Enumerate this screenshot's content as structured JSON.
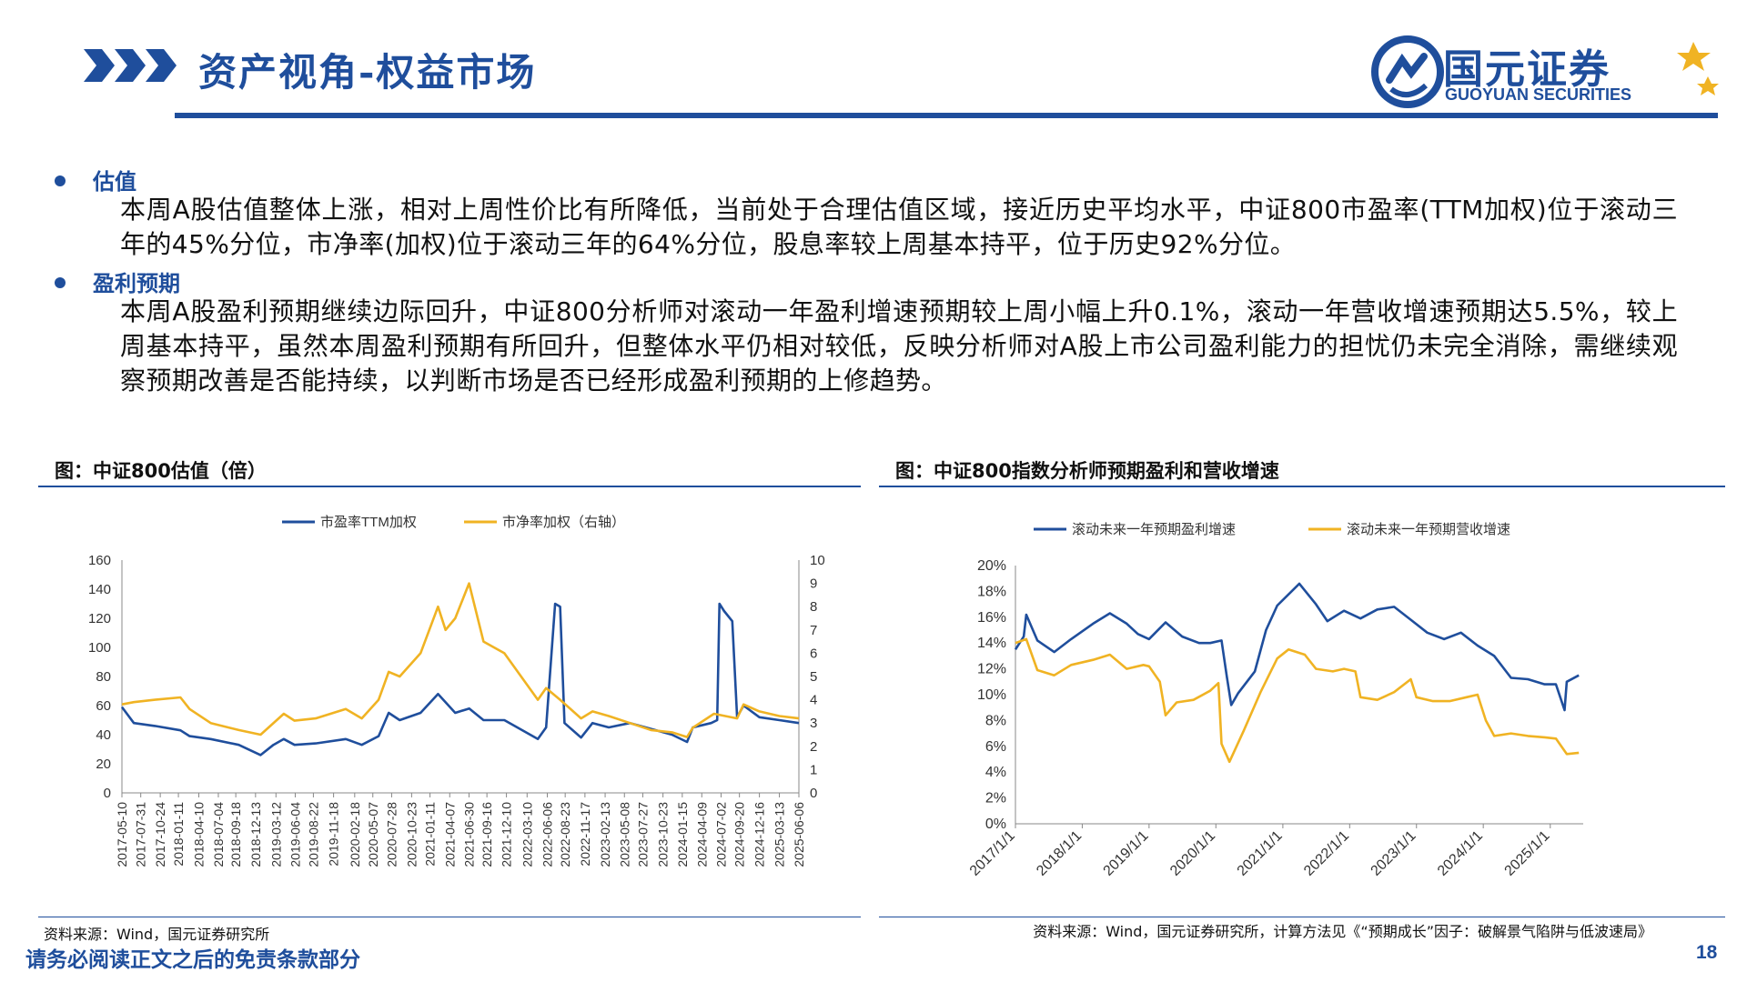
{
  "header": {
    "title": "资产视角-权益市场",
    "logo_cn": "国元证券",
    "logo_en": "GUOYUAN SECURITIES"
  },
  "sections": [
    {
      "heading": "估值",
      "text": "本周A股估值整体上涨，相对上周性价比有所降低，当前处于合理估值区域，接近历史平均水平，中证800市盈率(TTM加权)位于滚动三年的45%分位，市净率(加权)位于滚动三年的64%分位，股息率较上周基本持平，位于历史92%分位。"
    },
    {
      "heading": "盈利预期",
      "text": "本周A股盈利预期继续边际回升，中证800分析师对滚动一年盈利增速预期较上周小幅上升0.1%，滚动一年营收增速预期达5.5%，较上周基本持平，虽然本周盈利预期有所回升，但整体水平仍相对较低，反映分析师对A股上市公司盈利能力的担忧仍未完全消除，需继续观察预期改善是否能持续，以判断市场是否已经形成盈利预期的上修趋势。"
    }
  ],
  "figures": {
    "left_title": "图：中证800估值（倍）",
    "right_title": "图：中证800指数分析师预期盈利和营收增速",
    "left_source": "资料来源：Wind，国元证券研究所",
    "right_source": "资料来源：Wind，国元证券研究所，计算方法见《“预期成长”因子：破解景气陷阱与低波速局》"
  },
  "footer": {
    "disclaimer": "请务必阅读正文之后的免责条款部分",
    "page_number": "18"
  },
  "colors": {
    "brand": "#1f4e9c",
    "series_blue": "#1f4e9c",
    "series_gold": "#f0b323"
  },
  "chart_data": [
    {
      "type": "line",
      "title": "",
      "series": [
        {
          "name": "市盈率TTM加权",
          "axis": "left",
          "points": [
            [
              "2017-05-10",
              59
            ],
            [
              "2017-07-01",
              48
            ],
            [
              "2017-10-01",
              46
            ],
            [
              "2018-01-20",
              43
            ],
            [
              "2018-03-01",
              39
            ],
            [
              "2018-06-01",
              37
            ],
            [
              "2018-10-01",
              33
            ],
            [
              "2019-01-04",
              26
            ],
            [
              "2019-03-01",
              33
            ],
            [
              "2019-04-15",
              37
            ],
            [
              "2019-06-01",
              33
            ],
            [
              "2019-09-01",
              34
            ],
            [
              "2020-01-10",
              37
            ],
            [
              "2020-03-20",
              33
            ],
            [
              "2020-06-01",
              39
            ],
            [
              "2020-07-15",
              55
            ],
            [
              "2020-09-01",
              50
            ],
            [
              "2020-12-01",
              55
            ],
            [
              "2021-02-15",
              68
            ],
            [
              "2021-05-01",
              55
            ],
            [
              "2021-07-01",
              58
            ],
            [
              "2021-09-01",
              50
            ],
            [
              "2021-12-01",
              50
            ],
            [
              "2022-04-26",
              37
            ],
            [
              "2022-06-01",
              45
            ],
            [
              "2022-07-10",
              130
            ],
            [
              "2022-08-01",
              128
            ],
            [
              "2022-08-20",
              48
            ],
            [
              "2022-10-31",
              38
            ],
            [
              "2022-12-20",
              48
            ],
            [
              "2023-03-01",
              45
            ],
            [
              "2023-06-01",
              48
            ],
            [
              "2023-09-01",
              44
            ],
            [
              "2023-12-01",
              40
            ],
            [
              "2024-02-05",
              35
            ],
            [
              "2024-03-01",
              45
            ],
            [
              "2024-05-20",
              48
            ],
            [
              "2024-06-15",
              50
            ],
            [
              "2024-06-25",
              130
            ],
            [
              "2024-07-15",
              125
            ],
            [
              "2024-08-20",
              118
            ],
            [
              "2024-09-10",
              52
            ],
            [
              "2024-10-08",
              60
            ],
            [
              "2024-12-16",
              52
            ],
            [
              "2025-03-13",
              50
            ],
            [
              "2025-06-06",
              48
            ]
          ]
        },
        {
          "name": "市净率加权（右轴）",
          "axis": "right",
          "points": [
            [
              "2017-05-10",
              3.8
            ],
            [
              "2017-07-01",
              3.9
            ],
            [
              "2017-10-01",
              4.0
            ],
            [
              "2018-01-20",
              4.1
            ],
            [
              "2018-03-01",
              3.6
            ],
            [
              "2018-06-01",
              3.0
            ],
            [
              "2018-10-01",
              2.7
            ],
            [
              "2019-01-04",
              2.5
            ],
            [
              "2019-04-15",
              3.4
            ],
            [
              "2019-06-01",
              3.1
            ],
            [
              "2019-09-01",
              3.2
            ],
            [
              "2020-01-10",
              3.6
            ],
            [
              "2020-03-20",
              3.2
            ],
            [
              "2020-06-01",
              4.0
            ],
            [
              "2020-07-15",
              5.2
            ],
            [
              "2020-09-01",
              5.0
            ],
            [
              "2020-12-01",
              6.0
            ],
            [
              "2021-02-15",
              8.0
            ],
            [
              "2021-03-20",
              7.0
            ],
            [
              "2021-05-01",
              7.5
            ],
            [
              "2021-06-30",
              9.0
            ],
            [
              "2021-09-01",
              6.5
            ],
            [
              "2021-12-01",
              6.0
            ],
            [
              "2022-04-26",
              4.0
            ],
            [
              "2022-06-01",
              4.5
            ],
            [
              "2022-08-01",
              4.0
            ],
            [
              "2022-10-31",
              3.2
            ],
            [
              "2022-12-20",
              3.5
            ],
            [
              "2023-03-01",
              3.3
            ],
            [
              "2023-06-01",
              3.0
            ],
            [
              "2023-09-01",
              2.7
            ],
            [
              "2023-12-01",
              2.6
            ],
            [
              "2024-02-05",
              2.4
            ],
            [
              "2024-03-01",
              2.8
            ],
            [
              "2024-06-01",
              3.4
            ],
            [
              "2024-09-10",
              3.2
            ],
            [
              "2024-10-08",
              3.8
            ],
            [
              "2024-12-16",
              3.5
            ],
            [
              "2025-03-13",
              3.3
            ],
            [
              "2025-06-06",
              3.2
            ]
          ]
        }
      ],
      "x_ticks": [
        "2017-05-10",
        "2017-07-31",
        "2017-10-24",
        "2018-01-11",
        "2018-04-10",
        "2018-07-04",
        "2018-09-18",
        "2018-12-13",
        "2019-03-12",
        "2019-06-04",
        "2019-08-22",
        "2019-11-18",
        "2020-02-18",
        "2020-05-07",
        "2020-07-28",
        "2020-10-23",
        "2021-01-11",
        "2021-04-07",
        "2021-06-30",
        "2021-09-16",
        "2021-12-10",
        "2022-03-10",
        "2022-06-06",
        "2022-08-23",
        "2022-11-17",
        "2023-02-13",
        "2023-05-08",
        "2023-07-27",
        "2023-10-23",
        "2024-01-15",
        "2024-04-09",
        "2024-07-02",
        "2024-09-20",
        "2024-12-16",
        "2025-03-13",
        "2025-06-06"
      ],
      "y_ticks": [
        "0",
        "20",
        "40",
        "60",
        "80",
        "100",
        "120",
        "140",
        "160"
      ],
      "y2_ticks": [
        "0",
        "1",
        "2",
        "3",
        "4",
        "5",
        "6",
        "7",
        "8",
        "9",
        "10"
      ],
      "ylim": [
        0,
        160
      ],
      "y2lim": [
        0,
        10
      ],
      "grid": false,
      "legend": "top"
    },
    {
      "type": "line",
      "title": "",
      "series": [
        {
          "name": "滚动未来一年预期盈利增速",
          "points": [
            [
              "2017-01-01",
              13.5
            ],
            [
              "2017-02-15",
              14.5
            ],
            [
              "2017-03-01",
              16.2
            ],
            [
              "2017-05-01",
              14.2
            ],
            [
              "2017-08-01",
              13.3
            ],
            [
              "2017-11-01",
              14.3
            ],
            [
              "2018-03-01",
              15.5
            ],
            [
              "2018-06-01",
              16.3
            ],
            [
              "2018-09-01",
              15.5
            ],
            [
              "2018-11-01",
              14.7
            ],
            [
              "2019-01-01",
              14.3
            ],
            [
              "2019-04-01",
              15.6
            ],
            [
              "2019-07-01",
              14.5
            ],
            [
              "2019-10-01",
              14.0
            ],
            [
              "2019-12-01",
              14.0
            ],
            [
              "2020-02-01",
              14.2
            ],
            [
              "2020-03-01",
              11.4
            ],
            [
              "2020-03-25",
              9.2
            ],
            [
              "2020-05-01",
              10.1
            ],
            [
              "2020-08-01",
              11.8
            ],
            [
              "2020-10-01",
              15.0
            ],
            [
              "2020-12-01",
              16.9
            ],
            [
              "2021-04-01",
              18.6
            ],
            [
              "2021-07-01",
              17.0
            ],
            [
              "2021-09-01",
              15.7
            ],
            [
              "2021-12-01",
              16.5
            ],
            [
              "2022-03-01",
              15.9
            ],
            [
              "2022-06-01",
              16.6
            ],
            [
              "2022-09-01",
              16.8
            ],
            [
              "2022-12-01",
              15.8
            ],
            [
              "2023-03-01",
              14.8
            ],
            [
              "2023-06-01",
              14.3
            ],
            [
              "2023-09-01",
              14.8
            ],
            [
              "2023-12-01",
              13.8
            ],
            [
              "2024-03-01",
              13.0
            ],
            [
              "2024-06-01",
              11.3
            ],
            [
              "2024-09-01",
              11.2
            ],
            [
              "2024-12-01",
              10.8
            ],
            [
              "2025-02-01",
              10.8
            ],
            [
              "2025-03-20",
              8.8
            ],
            [
              "2025-04-01",
              11.0
            ],
            [
              "2025-06-06",
              11.5
            ]
          ]
        },
        {
          "name": "滚动未来一年预期营收增速",
          "points": [
            [
              "2017-01-01",
              14.0
            ],
            [
              "2017-03-01",
              14.3
            ],
            [
              "2017-05-01",
              11.9
            ],
            [
              "2017-08-01",
              11.5
            ],
            [
              "2017-11-01",
              12.3
            ],
            [
              "2018-03-01",
              12.7
            ],
            [
              "2018-06-01",
              13.1
            ],
            [
              "2018-09-01",
              12.0
            ],
            [
              "2018-12-01",
              12.3
            ],
            [
              "2019-01-01",
              12.2
            ],
            [
              "2019-03-01",
              11.0
            ],
            [
              "2019-04-01",
              8.4
            ],
            [
              "2019-06-01",
              9.4
            ],
            [
              "2019-09-01",
              9.6
            ],
            [
              "2019-12-01",
              10.3
            ],
            [
              "2020-01-15",
              10.9
            ],
            [
              "2020-02-01",
              6.2
            ],
            [
              "2020-03-15",
              4.8
            ],
            [
              "2020-06-01",
              7.2
            ],
            [
              "2020-09-01",
              10.2
            ],
            [
              "2020-12-01",
              12.8
            ],
            [
              "2021-02-01",
              13.5
            ],
            [
              "2021-05-01",
              13.1
            ],
            [
              "2021-07-01",
              12.0
            ],
            [
              "2021-10-01",
              11.8
            ],
            [
              "2021-12-01",
              12.0
            ],
            [
              "2022-02-01",
              11.8
            ],
            [
              "2022-03-01",
              9.8
            ],
            [
              "2022-06-01",
              9.6
            ],
            [
              "2022-09-01",
              10.2
            ],
            [
              "2022-12-01",
              11.2
            ],
            [
              "2023-01-01",
              9.8
            ],
            [
              "2023-04-01",
              9.5
            ],
            [
              "2023-07-01",
              9.5
            ],
            [
              "2023-10-01",
              9.8
            ],
            [
              "2023-12-01",
              10.0
            ],
            [
              "2024-01-15",
              8.0
            ],
            [
              "2024-03-01",
              6.8
            ],
            [
              "2024-06-01",
              7.0
            ],
            [
              "2024-09-01",
              6.8
            ],
            [
              "2024-12-01",
              6.7
            ],
            [
              "2025-02-01",
              6.6
            ],
            [
              "2025-04-01",
              5.4
            ],
            [
              "2025-06-06",
              5.5
            ]
          ]
        }
      ],
      "x_ticks": [
        "2017/1/1",
        "2018/1/1",
        "2019/1/1",
        "2020/1/1",
        "2021/1/1",
        "2022/1/1",
        "2023/1/1",
        "2024/1/1",
        "2025/1/1"
      ],
      "y_ticks": [
        "0%",
        "2%",
        "4%",
        "6%",
        "8%",
        "10%",
        "12%",
        "14%",
        "16%",
        "18%",
        "20%"
      ],
      "ylim": [
        0,
        20
      ],
      "grid": false,
      "legend": "top"
    }
  ]
}
